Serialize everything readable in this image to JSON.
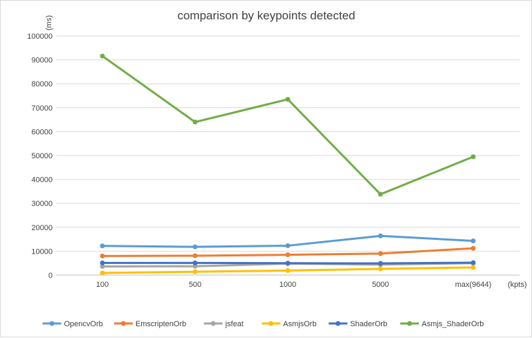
{
  "chart_data": {
    "type": "line",
    "title": "comparison by keypoints detected",
    "xlabel": "(kpts)",
    "ylabel": "(ms)",
    "categories": [
      "100",
      "500",
      "1000",
      "5000",
      "max(9644)"
    ],
    "ylim": [
      0,
      100000
    ],
    "yticks": [
      0,
      10000,
      20000,
      30000,
      40000,
      50000,
      60000,
      70000,
      80000,
      90000,
      100000
    ],
    "grid": true,
    "legend_position": "bottom",
    "series": [
      {
        "name": "OpencvOrb",
        "color": "#5b9bd5",
        "values": [
          12200,
          11800,
          12300,
          16400,
          14300
        ]
      },
      {
        "name": "EmscriptenOrb",
        "color": "#ed7d31",
        "values": [
          8000,
          8100,
          8500,
          9000,
          11200
        ]
      },
      {
        "name": "jsfeat",
        "color": "#a5a5a5",
        "values": [
          3600,
          3700,
          4800,
          4400,
          5000
        ]
      },
      {
        "name": "AsmjsOrb",
        "color": "#ffc000",
        "values": [
          900,
          1400,
          1900,
          2600,
          3200
        ]
      },
      {
        "name": "ShaderOrb",
        "color": "#4472c4",
        "values": [
          5100,
          5100,
          5000,
          4900,
          5200
        ]
      },
      {
        "name": "Asmjs_ShaderOrb",
        "color": "#70ad47",
        "values": [
          91600,
          64000,
          73500,
          33800,
          49500
        ]
      }
    ]
  }
}
